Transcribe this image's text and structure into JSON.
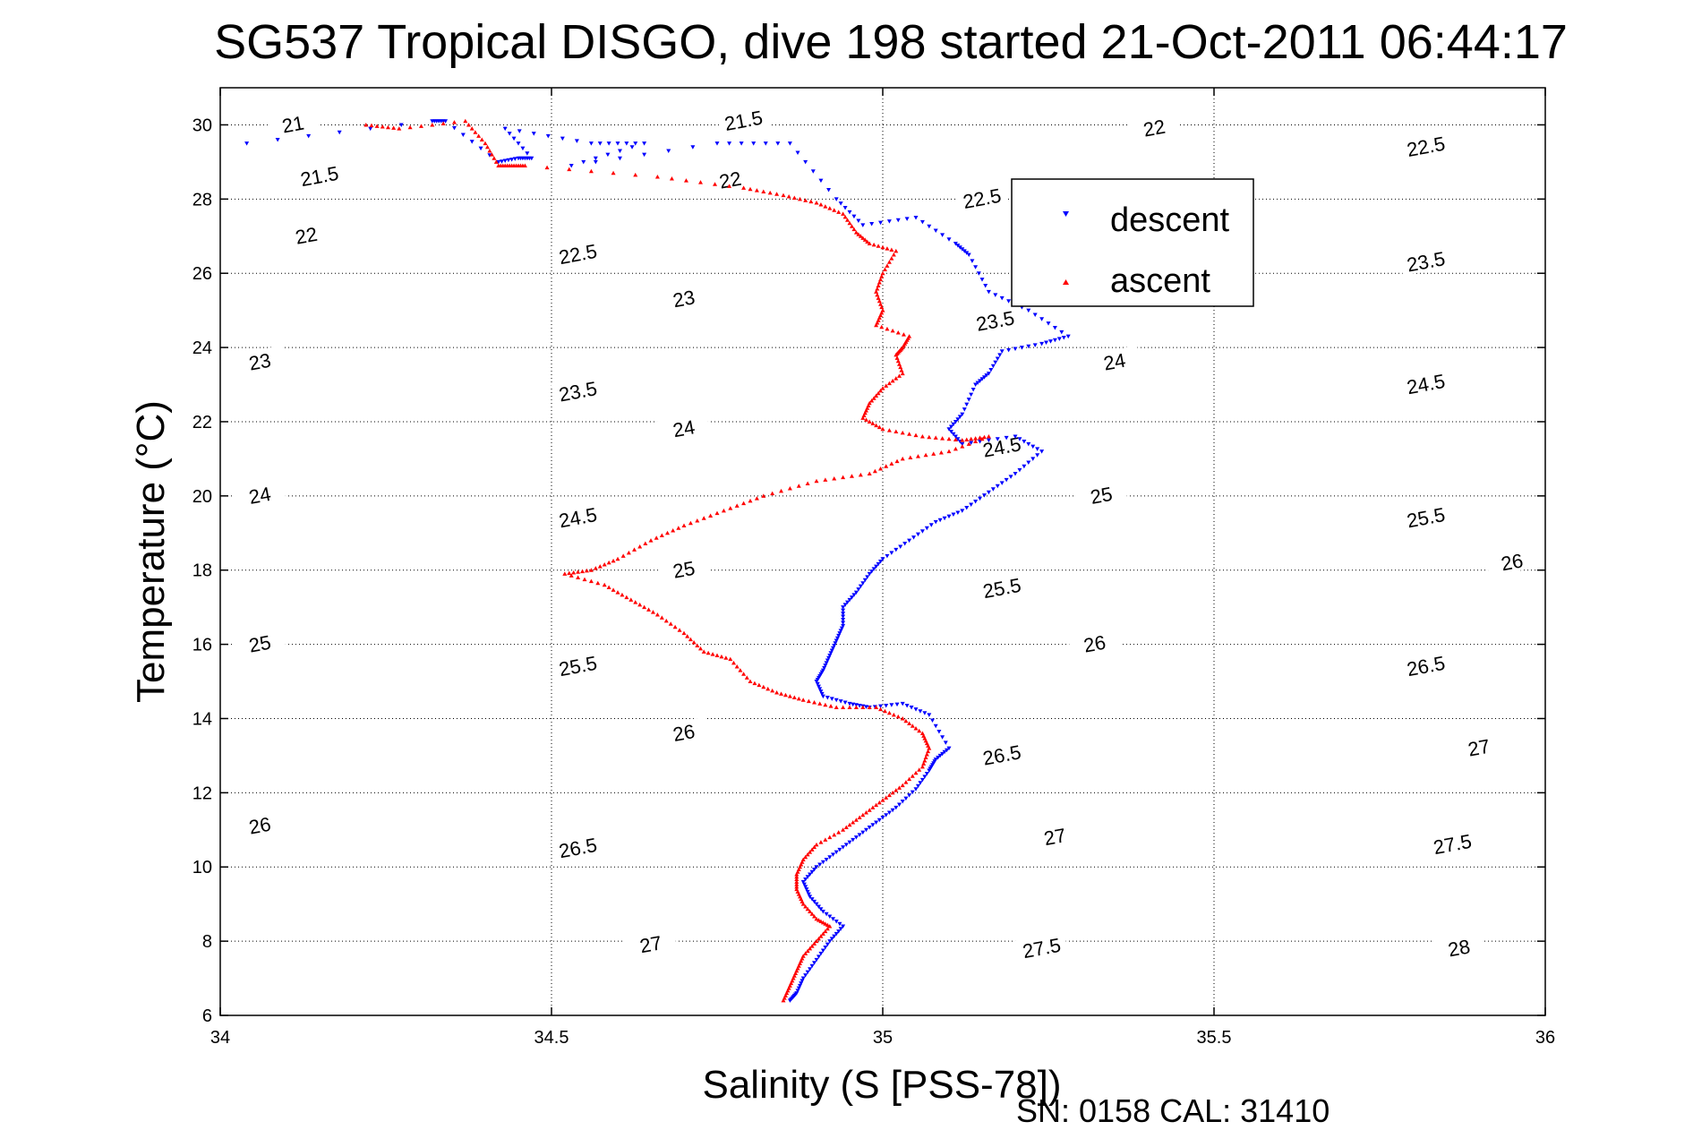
{
  "chart_data": {
    "type": "scatter",
    "title": "SG537 Tropical DISGO, dive 198 started 21-Oct-2011 06:44:17",
    "xlabel": "Salinity (S [PSS-78])",
    "ylabel": "Temperature (°C)",
    "xlim": [
      34,
      36
    ],
    "ylim": [
      6,
      31
    ],
    "xticks": [
      34,
      34.5,
      35,
      35.5,
      36
    ],
    "xtick_labels": [
      "34",
      "34.5",
      "35",
      "35.5",
      "36"
    ],
    "yticks": [
      6,
      8,
      10,
      12,
      14,
      16,
      18,
      20,
      22,
      24,
      26,
      28,
      30
    ],
    "ytick_labels": [
      "6",
      "8",
      "10",
      "12",
      "14",
      "16",
      "18",
      "20",
      "22",
      "24",
      "26",
      "28",
      "30"
    ],
    "grid": true,
    "legend_position": "top-right",
    "footer": "SN: 0158  CAL: 31410",
    "density_contours": {
      "levels": [
        21,
        21.5,
        22,
        22.5,
        23,
        23.5,
        24,
        24.5,
        25,
        25.5,
        26,
        26.5,
        27,
        27.5,
        28
      ],
      "labels": [
        {
          "text": "21",
          "S": 34.11,
          "T": 30.0
        },
        {
          "text": "21.5",
          "S": 34.15,
          "T": 28.6
        },
        {
          "text": "22",
          "S": 34.13,
          "T": 27.0
        },
        {
          "text": "23",
          "S": 34.06,
          "T": 23.6
        },
        {
          "text": "24",
          "S": 34.06,
          "T": 20.0
        },
        {
          "text": "25",
          "S": 34.06,
          "T": 16.0
        },
        {
          "text": "26",
          "S": 34.06,
          "T": 11.1
        },
        {
          "text": "21.5",
          "S": 34.79,
          "T": 30.1
        },
        {
          "text": "22",
          "S": 34.77,
          "T": 28.5
        },
        {
          "text": "22.5",
          "S": 34.54,
          "T": 26.5
        },
        {
          "text": "23",
          "S": 34.7,
          "T": 25.3
        },
        {
          "text": "23.5",
          "S": 34.54,
          "T": 22.8
        },
        {
          "text": "24",
          "S": 34.7,
          "T": 21.8
        },
        {
          "text": "24.5",
          "S": 34.54,
          "T": 19.4
        },
        {
          "text": "25",
          "S": 34.7,
          "T": 18.0
        },
        {
          "text": "25.5",
          "S": 34.54,
          "T": 15.4
        },
        {
          "text": "26",
          "S": 34.7,
          "T": 13.6
        },
        {
          "text": "26.5",
          "S": 34.54,
          "T": 10.5
        },
        {
          "text": "27",
          "S": 34.65,
          "T": 7.9
        },
        {
          "text": "22.5",
          "S": 35.15,
          "T": 28.0
        },
        {
          "text": "23.5",
          "S": 35.17,
          "T": 24.7
        },
        {
          "text": "24.5",
          "S": 35.18,
          "T": 21.3
        },
        {
          "text": "25.5",
          "S": 35.18,
          "T": 17.5
        },
        {
          "text": "26",
          "S": 35.32,
          "T": 16.0
        },
        {
          "text": "26.5",
          "S": 35.18,
          "T": 13.0
        },
        {
          "text": "27",
          "S": 35.26,
          "T": 10.8
        },
        {
          "text": "27.5",
          "S": 35.24,
          "T": 7.8
        },
        {
          "text": "22",
          "S": 35.41,
          "T": 29.9
        },
        {
          "text": "24",
          "S": 35.35,
          "T": 23.6
        },
        {
          "text": "25",
          "S": 35.33,
          "T": 20.0
        },
        {
          "text": "22.5",
          "S": 35.82,
          "T": 29.4
        },
        {
          "text": "23.5",
          "S": 35.82,
          "T": 26.3
        },
        {
          "text": "24.5",
          "S": 35.82,
          "T": 23.0
        },
        {
          "text": "25.5",
          "S": 35.82,
          "T": 19.4
        },
        {
          "text": "26",
          "S": 35.95,
          "T": 18.2
        },
        {
          "text": "26.5",
          "S": 35.82,
          "T": 15.4
        },
        {
          "text": "27",
          "S": 35.9,
          "T": 13.2
        },
        {
          "text": "27.5",
          "S": 35.86,
          "T": 10.6
        },
        {
          "text": "28",
          "S": 35.87,
          "T": 7.8
        }
      ]
    },
    "series": [
      {
        "name": "descent",
        "color": "#0000ff",
        "marker": "triangle-down",
        "points": [
          [
            34.04,
            29.5
          ],
          [
            34.32,
            30.1
          ],
          [
            34.34,
            30.1
          ],
          [
            34.42,
            29.0
          ],
          [
            34.45,
            29.1
          ],
          [
            34.47,
            29.1
          ],
          [
            34.43,
            29.9
          ],
          [
            34.56,
            29.5
          ],
          [
            34.64,
            29.5
          ],
          [
            34.53,
            28.9
          ],
          [
            34.75,
            29.5
          ],
          [
            34.86,
            29.5
          ],
          [
            34.93,
            28.0
          ],
          [
            34.97,
            27.3
          ],
          [
            35.05,
            27.5
          ],
          [
            35.11,
            26.8
          ],
          [
            35.13,
            26.5
          ],
          [
            35.16,
            25.5
          ],
          [
            35.22,
            25.0
          ],
          [
            35.28,
            24.3
          ],
          [
            35.24,
            24.1
          ],
          [
            35.18,
            23.9
          ],
          [
            35.16,
            23.3
          ],
          [
            35.14,
            23.0
          ],
          [
            35.12,
            22.2
          ],
          [
            35.1,
            21.8
          ],
          [
            35.12,
            21.4
          ],
          [
            35.2,
            21.6
          ],
          [
            35.24,
            21.2
          ],
          [
            35.2,
            20.6
          ],
          [
            35.16,
            20.1
          ],
          [
            35.12,
            19.6
          ],
          [
            35.08,
            19.3
          ],
          [
            35.04,
            18.8
          ],
          [
            35.0,
            18.3
          ],
          [
            34.98,
            17.9
          ],
          [
            34.96,
            17.4
          ],
          [
            34.94,
            17.0
          ],
          [
            34.94,
            16.5
          ],
          [
            34.93,
            16.1
          ],
          [
            34.92,
            15.7
          ],
          [
            34.91,
            15.3
          ],
          [
            34.9,
            15.0
          ],
          [
            34.91,
            14.6
          ],
          [
            34.95,
            14.4
          ],
          [
            34.98,
            14.3
          ],
          [
            35.03,
            14.4
          ],
          [
            35.07,
            14.1
          ],
          [
            35.1,
            13.2
          ],
          [
            35.08,
            12.9
          ],
          [
            35.07,
            12.6
          ],
          [
            35.05,
            12.1
          ],
          [
            35.02,
            11.6
          ],
          [
            34.99,
            11.2
          ],
          [
            34.96,
            10.8
          ],
          [
            34.93,
            10.4
          ],
          [
            34.9,
            10.0
          ],
          [
            34.88,
            9.6
          ],
          [
            34.89,
            9.2
          ],
          [
            34.91,
            8.8
          ],
          [
            34.94,
            8.4
          ],
          [
            34.92,
            8.0
          ],
          [
            34.9,
            7.5
          ],
          [
            34.88,
            7.0
          ],
          [
            34.87,
            6.6
          ],
          [
            34.86,
            6.4
          ]
        ]
      },
      {
        "name": "ascent",
        "color": "#ff0000",
        "marker": "triangle-up",
        "points": [
          [
            34.22,
            30.0
          ],
          [
            34.27,
            29.9
          ],
          [
            34.37,
            30.1
          ],
          [
            34.4,
            29.5
          ],
          [
            34.42,
            28.9
          ],
          [
            34.44,
            28.9
          ],
          [
            34.46,
            28.9
          ],
          [
            34.66,
            28.6
          ],
          [
            34.79,
            28.3
          ],
          [
            34.85,
            28.1
          ],
          [
            34.9,
            27.9
          ],
          [
            34.94,
            27.6
          ],
          [
            34.96,
            27.1
          ],
          [
            34.98,
            26.8
          ],
          [
            35.02,
            26.6
          ],
          [
            35.0,
            26.0
          ],
          [
            34.99,
            25.5
          ],
          [
            35.0,
            25.0
          ],
          [
            34.99,
            24.6
          ],
          [
            35.04,
            24.3
          ],
          [
            35.03,
            24.0
          ],
          [
            35.02,
            23.8
          ],
          [
            35.03,
            23.3
          ],
          [
            35.0,
            22.9
          ],
          [
            34.98,
            22.5
          ],
          [
            34.97,
            22.1
          ],
          [
            35.0,
            21.8
          ],
          [
            35.06,
            21.6
          ],
          [
            35.12,
            21.5
          ],
          [
            35.16,
            21.6
          ],
          [
            35.1,
            21.2
          ],
          [
            35.03,
            21.0
          ],
          [
            34.98,
            20.6
          ],
          [
            34.9,
            20.4
          ],
          [
            34.82,
            20.0
          ],
          [
            34.76,
            19.6
          ],
          [
            34.7,
            19.2
          ],
          [
            34.65,
            18.8
          ],
          [
            34.6,
            18.3
          ],
          [
            34.56,
            18.0
          ],
          [
            34.52,
            17.9
          ],
          [
            34.58,
            17.6
          ],
          [
            34.62,
            17.2
          ],
          [
            34.66,
            16.8
          ],
          [
            34.7,
            16.3
          ],
          [
            34.73,
            15.8
          ],
          [
            34.77,
            15.6
          ],
          [
            34.8,
            15.0
          ],
          [
            34.84,
            14.7
          ],
          [
            34.88,
            14.5
          ],
          [
            34.93,
            14.3
          ],
          [
            34.99,
            14.3
          ],
          [
            35.03,
            14.0
          ],
          [
            35.06,
            13.6
          ],
          [
            35.07,
            13.2
          ],
          [
            35.06,
            12.7
          ],
          [
            35.03,
            12.2
          ],
          [
            35.0,
            11.8
          ],
          [
            34.97,
            11.4
          ],
          [
            34.94,
            11.0
          ],
          [
            34.9,
            10.6
          ],
          [
            34.88,
            10.2
          ],
          [
            34.87,
            9.8
          ],
          [
            34.87,
            9.4
          ],
          [
            34.88,
            9.0
          ],
          [
            34.9,
            8.6
          ],
          [
            34.92,
            8.4
          ],
          [
            34.9,
            8.0
          ],
          [
            34.88,
            7.6
          ],
          [
            34.87,
            7.2
          ],
          [
            34.86,
            6.8
          ],
          [
            34.85,
            6.4
          ]
        ]
      }
    ]
  }
}
